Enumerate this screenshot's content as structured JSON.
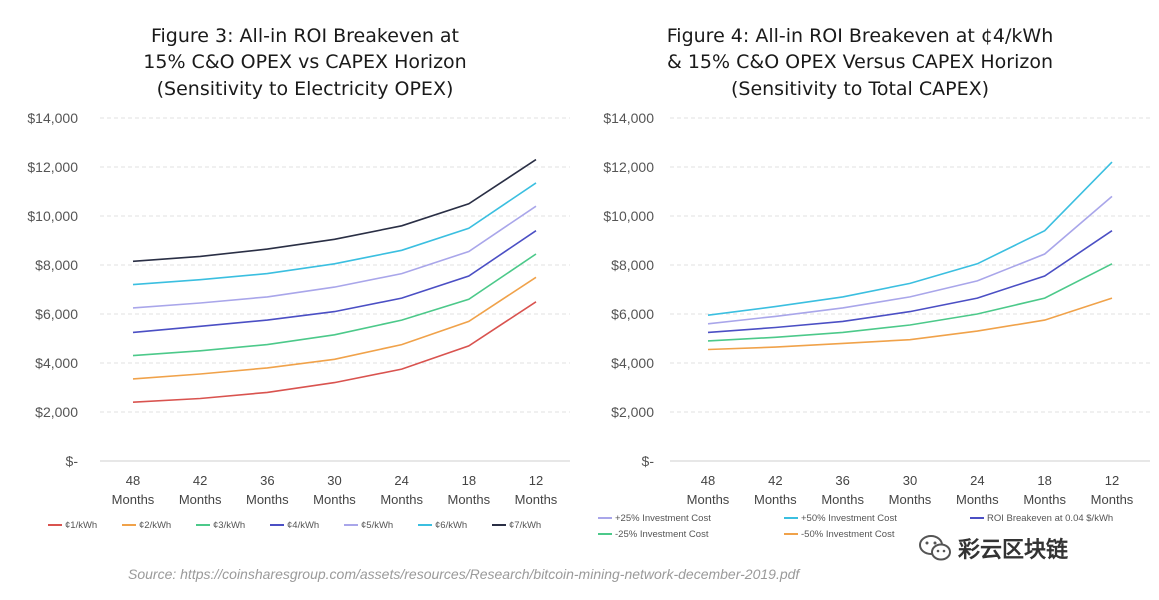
{
  "source": "Source: https://coinsharesgroup.com/assets/resources/Research/bitcoin-mining-network-december-2019.pdf",
  "watermark": {
    "text": "彩云区块链",
    "icon": "wechat-icon"
  },
  "chart_data": [
    {
      "type": "line",
      "title": [
        "Figure 3: All-in ROI Breakeven at",
        "15% C&O OPEX vs CAPEX Horizon",
        "(Sensitivity to Electricity OPEX)"
      ],
      "categories": [
        [
          "48",
          "Months"
        ],
        [
          "42",
          "Months"
        ],
        [
          "36",
          "Months"
        ],
        [
          "30",
          "Months"
        ],
        [
          "24",
          "Months"
        ],
        [
          "18",
          "Months"
        ],
        [
          "12",
          "Months"
        ]
      ],
      "ylim": [
        0,
        14000
      ],
      "yticks": [
        {
          "value": 0,
          "label": "$-"
        },
        {
          "value": 2000,
          "label": "$2,000"
        },
        {
          "value": 4000,
          "label": "$4,000"
        },
        {
          "value": 6000,
          "label": "$6,000"
        },
        {
          "value": 8000,
          "label": "$8,000"
        },
        {
          "value": 10000,
          "label": "$10,000"
        },
        {
          "value": 12000,
          "label": "$12,000"
        },
        {
          "value": 14000,
          "label": "$14,000"
        }
      ],
      "grid": true,
      "legend_position": "bottom",
      "series": [
        {
          "name": "¢1/kWh",
          "color": "#d9534f",
          "values": [
            2400,
            2550,
            2800,
            3200,
            3750,
            4700,
            6500
          ]
        },
        {
          "name": "¢2/kWh",
          "color": "#f0a24a",
          "values": [
            3350,
            3550,
            3800,
            4150,
            4750,
            5700,
            7500
          ]
        },
        {
          "name": "¢3/kWh",
          "color": "#4cc98a",
          "values": [
            4300,
            4500,
            4750,
            5150,
            5750,
            6600,
            8450
          ]
        },
        {
          "name": "¢4/kWh",
          "color": "#4b4fc4",
          "values": [
            5250,
            5500,
            5750,
            6100,
            6650,
            7550,
            9400
          ]
        },
        {
          "name": "¢5/kWh",
          "color": "#a9a6ea",
          "values": [
            6250,
            6450,
            6700,
            7100,
            7650,
            8550,
            10400
          ]
        },
        {
          "name": "¢6/kWh",
          "color": "#3bbfe0",
          "values": [
            7200,
            7400,
            7650,
            8050,
            8600,
            9500,
            11350
          ]
        },
        {
          "name": "¢7/kWh",
          "color": "#2a2f45",
          "values": [
            8150,
            8350,
            8650,
            9050,
            9600,
            10500,
            12300
          ]
        }
      ]
    },
    {
      "type": "line",
      "title": [
        "Figure 4: All-in ROI Breakeven at ¢4/kWh",
        "& 15% C&O OPEX Versus CAPEX Horizon",
        "(Sensitivity to Total CAPEX)"
      ],
      "categories": [
        [
          "48",
          "Months"
        ],
        [
          "42",
          "Months"
        ],
        [
          "36",
          "Months"
        ],
        [
          "30",
          "Months"
        ],
        [
          "24",
          "Months"
        ],
        [
          "18",
          "Months"
        ],
        [
          "12",
          "Months"
        ]
      ],
      "ylim": [
        0,
        14000
      ],
      "yticks": [
        {
          "value": 0,
          "label": "$-"
        },
        {
          "value": 2000,
          "label": "$2,000"
        },
        {
          "value": 4000,
          "label": "$4,000"
        },
        {
          "value": 6000,
          "label": "$6,000"
        },
        {
          "value": 8000,
          "label": "$8,000"
        },
        {
          "value": 10000,
          "label": "$10,000"
        },
        {
          "value": 12000,
          "label": "$12,000"
        },
        {
          "value": 14000,
          "label": "$14,000"
        }
      ],
      "grid": true,
      "legend_position": "bottom",
      "series": [
        {
          "name": "+25% Investment Cost",
          "color": "#a9a6ea",
          "values": [
            5600,
            5900,
            6250,
            6700,
            7350,
            8450,
            10800
          ]
        },
        {
          "name": "+50% Investment Cost",
          "color": "#3bbfe0",
          "values": [
            5950,
            6300,
            6700,
            7250,
            8050,
            9400,
            12200
          ]
        },
        {
          "name": "ROI Breakeven at 0.04 $/kWh",
          "color": "#4b4fc4",
          "values": [
            5250,
            5450,
            5700,
            6100,
            6650,
            7550,
            9400
          ]
        },
        {
          "name": "-25% Investment Cost",
          "color": "#4cc98a",
          "values": [
            4900,
            5050,
            5250,
            5550,
            6000,
            6650,
            8050
          ]
        },
        {
          "name": "-50% Investment Cost",
          "color": "#f0a24a",
          "values": [
            4550,
            4650,
            4800,
            4950,
            5300,
            5750,
            6650
          ]
        }
      ]
    }
  ]
}
